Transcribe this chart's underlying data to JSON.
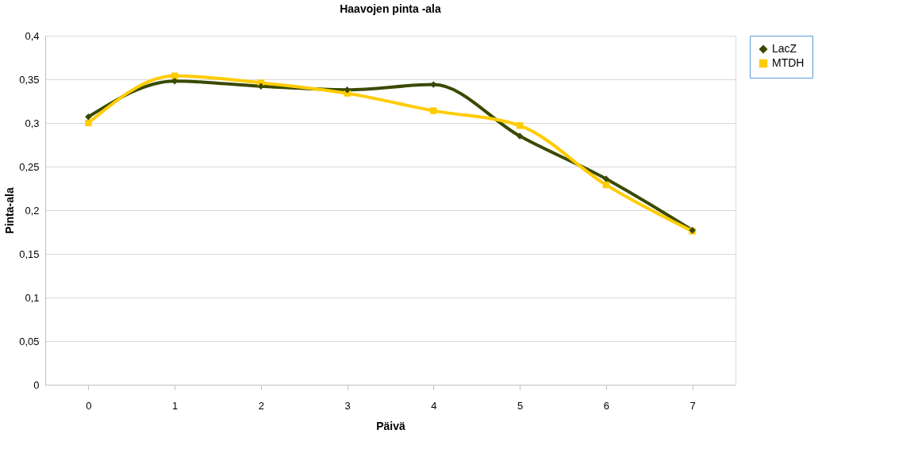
{
  "chart_data": {
    "type": "line",
    "title": "Haavojen pinta -ala",
    "xlabel": "Päivä",
    "ylabel": "Pinta-ala",
    "categories": [
      "0",
      "1",
      "2",
      "3",
      "4",
      "5",
      "6",
      "7"
    ],
    "series": [
      {
        "name": "LacZ",
        "color": "#3a4a00",
        "marker": "diamond",
        "values": [
          0.307,
          0.348,
          0.342,
          0.338,
          0.344,
          0.285,
          0.236,
          0.177
        ]
      },
      {
        "name": "MTDH",
        "color": "#ffcc00",
        "marker": "square",
        "values": [
          0.3,
          0.354,
          0.346,
          0.334,
          0.314,
          0.297,
          0.229,
          0.176
        ]
      }
    ],
    "ylim": [
      0,
      0.4
    ],
    "yticks": [
      {
        "value": 0,
        "label": "0"
      },
      {
        "value": 0.05,
        "label": "0,05"
      },
      {
        "value": 0.1,
        "label": "0,1"
      },
      {
        "value": 0.15,
        "label": "0,15"
      },
      {
        "value": 0.2,
        "label": "0,2"
      },
      {
        "value": 0.25,
        "label": "0,25"
      },
      {
        "value": 0.3,
        "label": "0,3"
      },
      {
        "value": 0.35,
        "label": "0,35"
      },
      {
        "value": 0.4,
        "label": "0,4"
      }
    ],
    "grid": "y",
    "legend": "right",
    "line_style": "solid"
  }
}
